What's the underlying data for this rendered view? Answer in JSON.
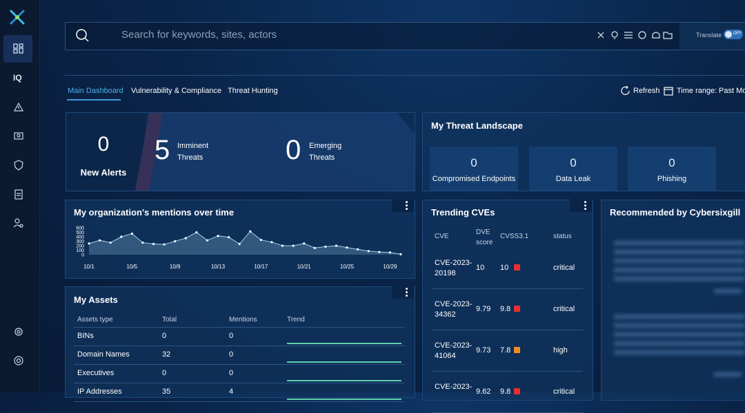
{
  "search": {
    "placeholder": "Search for keywords, sites, actors",
    "translate": "Translate",
    "toggle": "OFF"
  },
  "sidebar": {
    "iq": "IQ"
  },
  "tabs": [
    "Main Dashboard",
    "Vulnerability & Compliance",
    "Threat Hunting"
  ],
  "toolbar": {
    "refresh": "Refresh",
    "time_range": "Time range:",
    "time_value": "Past Mo"
  },
  "alerts": {
    "new_alerts": {
      "value": 0,
      "label": "New Alerts"
    },
    "imminent": {
      "value": 5,
      "label": "Imminent Threats"
    },
    "emerging": {
      "value": 0,
      "label": "Emerging Threats"
    }
  },
  "threat_landscape": {
    "title": "My Threat Landscape",
    "items": [
      {
        "value": 0,
        "label": "Compromised Endpoints"
      },
      {
        "value": 0,
        "label": "Data Leak"
      },
      {
        "value": 0,
        "label": "Phishing"
      }
    ]
  },
  "chart_data": {
    "type": "line",
    "title": "My organization's mentions over time",
    "categories": [
      "10/1",
      null,
      null,
      null,
      "10/5",
      null,
      null,
      null,
      "10/9",
      null,
      null,
      null,
      "10/13",
      null,
      null,
      null,
      "10/17",
      null,
      null,
      null,
      "10/21",
      null,
      null,
      null,
      "10/25",
      null,
      null,
      null,
      "10/29",
      null
    ],
    "values": [
      250,
      320,
      270,
      400,
      470,
      270,
      240,
      230,
      300,
      370,
      500,
      320,
      420,
      390,
      240,
      520,
      330,
      280,
      200,
      200,
      250,
      150,
      180,
      200,
      160,
      120,
      80,
      60,
      50,
      10
    ],
    "color": "#9fd3f0",
    "ylim": [
      0,
      600
    ],
    "yticks": [
      0,
      100,
      200,
      300,
      400,
      500,
      600
    ],
    "grid": false
  },
  "assets": {
    "title": "My Assets",
    "columns": [
      "Assets type",
      "Total",
      "Mentions",
      "Trend"
    ],
    "rows": [
      [
        "BINs",
        0,
        0
      ],
      [
        "Domain Names",
        32,
        0
      ],
      [
        "Executives",
        0,
        0
      ],
      [
        "IP Addresses",
        35,
        4
      ]
    ]
  },
  "cves": {
    "title": "Trending CVEs",
    "columns": [
      "CVE",
      "DVE score",
      "CVSS3.1",
      "status"
    ],
    "rows": [
      {
        "cve": "CVE-2023-20198",
        "dve": 10,
        "cvss": 10,
        "status": "critical",
        "color": "#e5312f"
      },
      {
        "cve": "CVE-2023-34362",
        "dve": 9.79,
        "cvss": 9.8,
        "status": "critical",
        "color": "#e5312f"
      },
      {
        "cve": "CVE-2023-41064",
        "dve": 9.73,
        "cvss": 7.8,
        "status": "high",
        "color": "#f08a24"
      },
      {
        "cve": "CVE-2023-",
        "dve": 9.62,
        "cvss": 9.8,
        "status": "critical",
        "color": "#e5312f"
      }
    ]
  },
  "recommended": {
    "title": "Recommended by Cybersixgill"
  }
}
